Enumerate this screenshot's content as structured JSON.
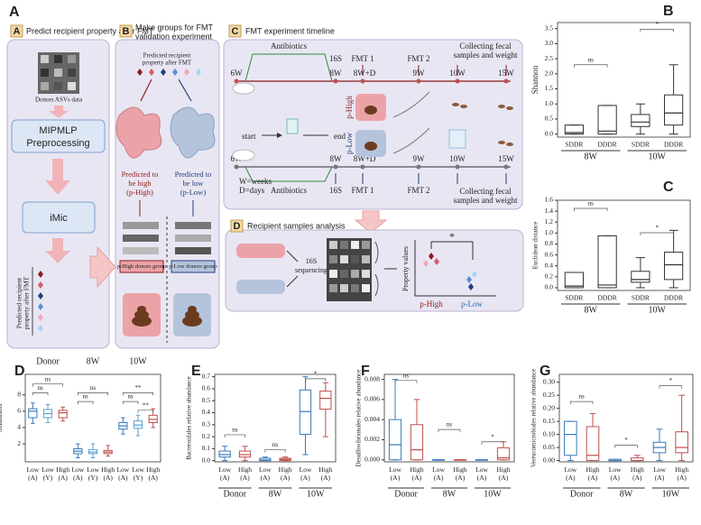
{
  "diagram": {
    "panel_a": {
      "label": "A",
      "tag": "A",
      "title": "Predict recipient property after FMT",
      "donors": "Donors ASVs data",
      "step1": [
        "MIPMLP",
        "Preprocessing"
      ],
      "step2": "iMic",
      "output": [
        "Predicted recipient",
        "property after FMT"
      ]
    },
    "panel_b": {
      "tag": "B",
      "title": [
        "Make groups for FMT",
        "validation experiment"
      ],
      "header": [
        "Predicted recipient",
        "property after FMT"
      ],
      "high": [
        "Predicted to",
        "be high",
        "(p-High)"
      ],
      "low": [
        "Predicted to",
        "be low",
        "(p-Low)"
      ],
      "high_group": "p-High donors group",
      "low_group": "p-Low donors group"
    },
    "panel_c": {
      "tag": "C",
      "title": "FMT experiment timeline",
      "antibiotics": "Antibiotics",
      "seq": "16S",
      "fmt1": "FMT 1",
      "fmt2": "FMT 2",
      "collecting": [
        "Collecting fecal",
        "samples and weight"
      ],
      "timepoints": [
        "6W",
        "8W",
        "8W+D",
        "9W",
        "10W",
        "15W"
      ],
      "start": "start",
      "end": "end",
      "p_high": "p-High",
      "p_low": "p-Low",
      "legend": [
        "W=weeks",
        "D=days"
      ]
    },
    "panel_d": {
      "tag": "D",
      "title": "Recipient samples analysis",
      "seq": [
        "16S",
        "sequencing"
      ],
      "ylabel": "Property values",
      "star": "*",
      "high": "p-High",
      "low": "p-Low"
    }
  },
  "chart_data": [
    {
      "type": "box",
      "label": "B",
      "ylabel": "Shannon",
      "categories": [
        "SDDR",
        "DDDR",
        "SDDR",
        "DDDR"
      ],
      "groups": [
        "8W",
        "10W"
      ],
      "color": "#333333",
      "boxes": [
        {
          "q1": 0,
          "median": 0.05,
          "q3": 0.3,
          "low": 0,
          "high": 0.3
        },
        {
          "q1": 0,
          "median": 0.1,
          "q3": 0.95,
          "low": 0,
          "high": 0.95
        },
        {
          "q1": 0.25,
          "median": 0.4,
          "q3": 0.65,
          "low": 0,
          "high": 1.0
        },
        {
          "q1": 0.3,
          "median": 0.7,
          "q3": 1.3,
          "low": 0,
          "high": 2.3
        }
      ],
      "ylim": [
        -0.1,
        3.7
      ],
      "yticks": [
        {
          "value": 0,
          "label": "0.0"
        },
        0.5,
        {
          "value": 1,
          "label": "1.0"
        },
        1.5,
        {
          "value": 2,
          "label": "2.0"
        },
        2.5,
        {
          "value": 3,
          "label": "3.0"
        },
        3.5
      ],
      "annotations": [
        {
          "text": "ns"
        },
        {
          "text": "*"
        }
      ]
    },
    {
      "type": "box",
      "label": "C",
      "ylabel": "Euclidean distance",
      "categories": [
        "SDDR",
        "DDDR",
        "SDDR",
        "DDDR"
      ],
      "groups": [
        "8W",
        "10W"
      ],
      "color": "#333333",
      "boxes": [
        {
          "q1": 0,
          "median": 0.03,
          "q3": 0.28,
          "low": 0,
          "high": 0.28
        },
        {
          "q1": 0,
          "median": 0.05,
          "q3": 0.95,
          "low": 0,
          "high": 0.95
        },
        {
          "q1": 0.1,
          "median": 0.15,
          "q3": 0.3,
          "low": 0,
          "high": 0.55
        },
        {
          "q1": 0.15,
          "median": 0.42,
          "q3": 0.65,
          "low": 0,
          "high": 1.05
        }
      ],
      "ylim": [
        -0.05,
        1.6
      ],
      "yticks": [
        {
          "value": 0,
          "label": "0.0"
        },
        0.2,
        0.4,
        0.6,
        0.8,
        {
          "value": 1,
          "label": "1.0"
        },
        1.2,
        1.4,
        1.6
      ],
      "annotations": [
        {
          "text": "ns"
        },
        {
          "text": "*"
        }
      ]
    },
    {
      "type": "box",
      "label": "D",
      "ylabel": "Shannon",
      "categories": [
        "Low (A)",
        "Low (Y)",
        "High (A)",
        "Low (A)",
        "Low (Y)",
        "High (A)",
        "Low (A)",
        "Low (Y)",
        "High (A)"
      ],
      "groups": [
        "Donor",
        "8W",
        "10W"
      ],
      "colors": [
        "#3b78b8",
        "#5ca0d0",
        "#c0504d",
        "#3b78b8",
        "#5ca0d0",
        "#c0504d",
        "#3b78b8",
        "#5ca0d0",
        "#c0504d"
      ],
      "boxes": [
        {
          "q1": 5.2,
          "median": 6,
          "q3": 6.3,
          "low": 4.5,
          "high": 7
        },
        {
          "q1": 5.2,
          "median": 5.7,
          "q3": 6.2,
          "low": 4.6,
          "high": 6.8
        },
        {
          "q1": 5.2,
          "median": 5.8,
          "q3": 6.1,
          "low": 4.8,
          "high": 6.5
        },
        {
          "q1": 0.8,
          "median": 1.1,
          "q3": 1.4,
          "low": 0.3,
          "high": 2
        },
        {
          "q1": 0.8,
          "median": 1.0,
          "q3": 1.3,
          "low": 0.3,
          "high": 2
        },
        {
          "q1": 0.8,
          "median": 1.0,
          "q3": 1.2,
          "low": 0.5,
          "high": 1.8
        },
        {
          "q1": 3.8,
          "median": 4.2,
          "q3": 4.6,
          "low": 3.2,
          "high": 5.2
        },
        {
          "q1": 3.9,
          "median": 4.3,
          "q3": 4.8,
          "low": 3.0,
          "high": 5.5
        },
        {
          "q1": 4.6,
          "median": 5.0,
          "q3": 5.5,
          "low": 4.0,
          "high": 6.3
        }
      ],
      "ylim": [
        -0.2,
        10.5
      ],
      "yticks": [
        2,
        4,
        6,
        8
      ],
      "annotations": [
        {
          "text": "ns"
        },
        {
          "text": "ns"
        },
        {
          "text": "ns"
        },
        {
          "text": "ns"
        },
        {
          "text": "**"
        },
        {
          "text": "ns"
        },
        {
          "text": "**"
        }
      ]
    },
    {
      "type": "box",
      "label": "E",
      "ylabel": "Bacteroidales relative abundance",
      "categories": [
        "Low (A)",
        "High (A)",
        "Low (A)",
        "High (A)",
        "Low (A)",
        "High (A)"
      ],
      "groups": [
        "Donor",
        "8W",
        "10W"
      ],
      "colors": [
        "#3b78b8",
        "#c0504d",
        "#3b78b8",
        "#c0504d",
        "#3b78b8",
        "#c0504d"
      ],
      "boxes": [
        {
          "q1": 0.03,
          "median": 0.05,
          "q3": 0.08,
          "low": 0,
          "high": 0.12
        },
        {
          "q1": 0.03,
          "median": 0.05,
          "q3": 0.08,
          "low": 0,
          "high": 0.12
        },
        {
          "q1": 0,
          "median": 0.005,
          "q3": 0.02,
          "low": 0,
          "high": 0.03
        },
        {
          "q1": 0,
          "median": 0.01,
          "q3": 0.02,
          "low": 0,
          "high": 0.03
        },
        {
          "q1": 0.22,
          "median": 0.41,
          "q3": 0.59,
          "low": 0.05,
          "high": 0.7
        },
        {
          "q1": 0.43,
          "median": 0.52,
          "q3": 0.58,
          "low": 0.2,
          "high": 0.65
        }
      ],
      "ylim": [
        -0.01,
        0.72
      ],
      "yticks": [
        {
          "value": 0,
          "label": "0.0"
        },
        0.1,
        0.2,
        0.3,
        0.4,
        0.5,
        0.6,
        0.7
      ],
      "annotations": [
        {
          "text": "ns"
        },
        {
          "text": "ns"
        },
        {
          "text": "*"
        }
      ]
    },
    {
      "type": "box",
      "label": "F",
      "ylabel": "Desulfovibrionales relative abundance",
      "categories": [
        "Low (A)",
        "High (A)",
        "Low (A)",
        "High (A)",
        "Low (A)",
        "High (A)"
      ],
      "groups": [
        "Donor",
        "8W",
        "10W"
      ],
      "colors": [
        "#3b78b8",
        "#c0504d",
        "#3b78b8",
        "#c0504d",
        "#3b78b8",
        "#c0504d"
      ],
      "boxes": [
        {
          "q1": 0,
          "median": 0.0015,
          "q3": 0.004,
          "low": 0,
          "high": 0.008
        },
        {
          "q1": 0,
          "median": 0.001,
          "q3": 0.0035,
          "low": 0,
          "high": 0.006
        },
        {
          "q1": 0,
          "median": 0,
          "q3": 0,
          "low": 0,
          "high": 0
        },
        {
          "q1": 0,
          "median": 0,
          "q3": 0,
          "low": 0,
          "high": 0
        },
        {
          "q1": 0,
          "median": 0,
          "q3": 0,
          "low": 0,
          "high": 0
        },
        {
          "q1": 0,
          "median": 0.0002,
          "q3": 0.0012,
          "low": 0,
          "high": 0.0018
        }
      ],
      "ylim": [
        -0.0002,
        0.0085
      ],
      "yticks": [
        {
          "value": 0,
          "label": "0.000"
        },
        0.002,
        0.004,
        0.006,
        0.008
      ],
      "annotations": [
        {
          "text": "ns"
        },
        {
          "text": "ns"
        },
        {
          "text": "*"
        }
      ]
    },
    {
      "type": "box",
      "label": "G",
      "ylabel": "Verrucomicrobiales relative abundance",
      "categories": [
        "Low (A)",
        "High (A)",
        "Low (A)",
        "High (A)",
        "Low (A)",
        "High (A)"
      ],
      "groups": [
        "Donor",
        "8W",
        "10W"
      ],
      "colors": [
        "#3b78b8",
        "#c0504d",
        "#3b78b8",
        "#c0504d",
        "#3b78b8",
        "#c0504d"
      ],
      "boxes": [
        {
          "q1": 0.02,
          "median": 0.1,
          "q3": 0.15,
          "low": 0,
          "high": 0.15
        },
        {
          "q1": 0,
          "median": 0.02,
          "q3": 0.13,
          "low": 0,
          "high": 0.18
        },
        {
          "q1": 0,
          "median": 0,
          "q3": 0.005,
          "low": 0,
          "high": 0.005
        },
        {
          "q1": 0,
          "median": 0,
          "q3": 0.01,
          "low": 0,
          "high": 0.02
        },
        {
          "q1": 0.03,
          "median": 0.05,
          "q3": 0.07,
          "low": 0,
          "high": 0.12
        },
        {
          "q1": 0.03,
          "median": 0.05,
          "q3": 0.11,
          "low": 0,
          "high": 0.25
        }
      ],
      "ylim": [
        -0.005,
        0.33
      ],
      "yticks": [
        {
          "value": 0,
          "label": "0.00"
        },
        0.05,
        {
          "value": 0.1,
          "label": "0.10"
        },
        0.15,
        {
          "value": 0.2,
          "label": "0.20"
        },
        0.25,
        {
          "value": 0.3,
          "label": "0.30"
        }
      ],
      "annotations": [
        {
          "text": "ns"
        },
        {
          "text": "*"
        },
        {
          "text": "*"
        }
      ]
    }
  ]
}
